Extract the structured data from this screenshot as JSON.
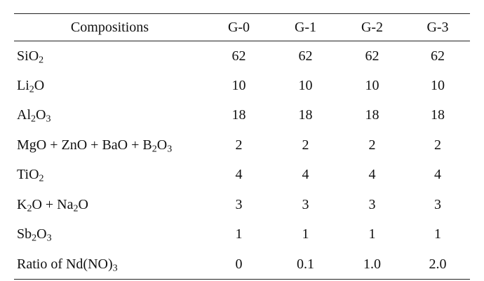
{
  "table": {
    "headers": [
      "Compositions",
      "G-0",
      "G-1",
      "G-2",
      "G-3"
    ],
    "rows": [
      {
        "name": [
          [
            "Si",
            ""
          ],
          [
            "O",
            "2"
          ]
        ],
        "values": [
          "62",
          "62",
          "62",
          "62"
        ]
      },
      {
        "name": [
          [
            "Li",
            "2"
          ],
          [
            "O",
            ""
          ]
        ],
        "values": [
          "10",
          "10",
          "10",
          "10"
        ]
      },
      {
        "name": [
          [
            "Al",
            "2"
          ],
          [
            "O",
            "3"
          ]
        ],
        "values": [
          "18",
          "18",
          "18",
          "18"
        ]
      },
      {
        "name": [
          [
            "MgO + ZnO + BaO + B",
            "2"
          ],
          [
            "O",
            "3"
          ]
        ],
        "values": [
          "2",
          "2",
          "2",
          "2"
        ]
      },
      {
        "name": [
          [
            "Ti",
            ""
          ],
          [
            "O",
            "2"
          ]
        ],
        "values": [
          "4",
          "4",
          "4",
          "4"
        ]
      },
      {
        "name": [
          [
            "K",
            "2"
          ],
          [
            "O + Na",
            "2"
          ],
          [
            "O",
            ""
          ]
        ],
        "values": [
          "3",
          "3",
          "3",
          "3"
        ]
      },
      {
        "name": [
          [
            "Sb",
            "2"
          ],
          [
            "O",
            "3"
          ]
        ],
        "values": [
          "1",
          "1",
          "1",
          "1"
        ]
      },
      {
        "name": [
          [
            "Ratio of Nd(NO",
            ""
          ],
          [
            "",
            ""
          ],
          [
            ")",
            "3"
          ]
        ],
        "values": [
          "0",
          "0.1",
          "1.0",
          "2.0"
        ]
      }
    ]
  }
}
